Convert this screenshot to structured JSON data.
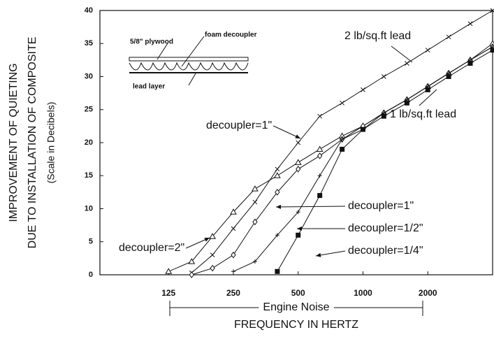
{
  "chart_data": {
    "type": "line",
    "y_title_lines": [
      "IMPROVEMENT OF QUIETING",
      "DUE TO INSTALLATION OF COMPOSITE",
      "(Scale in Decibels)"
    ],
    "x_title_lines": [
      "Engine Noise",
      "FREQUENCY IN HERTZ"
    ],
    "x": [
      125,
      160,
      200,
      250,
      315,
      400,
      500,
      630,
      800,
      1000,
      1250,
      1600,
      2000,
      2500,
      3150,
      4000
    ],
    "xlim": [
      60,
      4000
    ],
    "log_x": true,
    "xticks": [
      125,
      250,
      500,
      1000,
      2000
    ],
    "ylim": [
      0,
      40
    ],
    "yticks": [
      0,
      5,
      10,
      15,
      20,
      25,
      30,
      35,
      40
    ],
    "color": "#111111",
    "series": [
      {
        "name": "decoupler=2\"",
        "marker": "triangle",
        "values": [
          0.5,
          2,
          5.8,
          9.5,
          13,
          15,
          17,
          19,
          21,
          22.5,
          24.5,
          26.5,
          28.5,
          30.5,
          32.5,
          35
        ]
      },
      {
        "name": "decoupler=1\"",
        "marker": "x",
        "values": [
          null,
          0.3,
          3,
          7,
          11,
          16,
          20,
          24,
          26,
          28,
          30,
          32,
          34,
          36,
          38,
          40
        ]
      },
      {
        "name": "decoupler=1\"",
        "marker": "diamond",
        "values": [
          null,
          0,
          1,
          3,
          8,
          12.5,
          16,
          18,
          20.5,
          22.5,
          24.5,
          26.5,
          28.5,
          30.5,
          32.5,
          34.5
        ]
      },
      {
        "name": "decoupler=1/2\"",
        "marker": "plus",
        "values": [
          null,
          null,
          null,
          0.5,
          2,
          6,
          9.5,
          15,
          20.5,
          22,
          24.5,
          26.5,
          28.5,
          30.5,
          32.5,
          34.5
        ]
      },
      {
        "name": "decoupler=1/4\"",
        "marker": "square",
        "values": [
          null,
          null,
          null,
          null,
          null,
          0.5,
          6,
          12,
          19,
          22,
          24,
          26,
          28,
          30,
          32,
          34
        ]
      }
    ],
    "annotations": [
      "2 lb/sq.ft lead",
      "1 lb/sq.ft lead",
      "5/8\" plywood",
      "foam decoupler",
      "lead layer"
    ]
  }
}
